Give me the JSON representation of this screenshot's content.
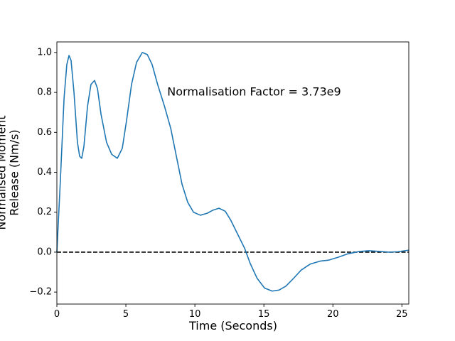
{
  "chart_data": {
    "type": "line",
    "xlabel": "Time (Seconds)",
    "ylabel": [
      "Normalised Moment",
      "Release (Nm/s)"
    ],
    "annotation": {
      "text": "Normalisation Factor = 3.73e9",
      "x": 8.0,
      "y": 0.8
    },
    "hline": {
      "y": 0,
      "color": "#000000",
      "style": "dashed"
    },
    "xlim": [
      0,
      25.5
    ],
    "ylim": [
      -0.26,
      1.053
    ],
    "xticks": [
      0,
      5,
      10,
      15,
      20,
      25
    ],
    "yticks": [
      {
        "value": -0.2,
        "label": "−0.2"
      },
      {
        "value": 0.0,
        "label": "0.0"
      },
      {
        "value": 0.2,
        "label": "0.2"
      },
      {
        "value": 0.4,
        "label": "0.4"
      },
      {
        "value": 0.6,
        "label": "0.6"
      },
      {
        "value": 0.8,
        "label": "0.8"
      },
      {
        "value": 1.0,
        "label": "1.0"
      }
    ],
    "grid": false,
    "series": [
      {
        "color": "#1f77b4",
        "x": [
          0,
          0.26,
          0.52,
          0.72,
          0.88,
          1.03,
          1.24,
          1.49,
          1.65,
          1.8,
          1.96,
          2.22,
          2.47,
          2.73,
          2.94,
          3.2,
          3.6,
          3.97,
          4.38,
          4.74,
          5.05,
          5.41,
          5.77,
          6.19,
          6.55,
          6.9,
          7.3,
          7.8,
          8.25,
          8.66,
          9.07,
          9.48,
          9.9,
          10.4,
          10.9,
          11.3,
          11.75,
          12.2,
          12.6,
          13.1,
          13.6,
          14.0,
          14.5,
          15.05,
          15.6,
          16.1,
          16.6,
          17.1,
          17.7,
          18.35,
          19.07,
          19.7,
          20.4,
          21.1,
          21.9,
          22.6,
          23.3,
          24.1,
          24.7,
          25.5
        ],
        "values": [
          0,
          0.37,
          0.77,
          0.94,
          0.985,
          0.96,
          0.8,
          0.55,
          0.48,
          0.47,
          0.53,
          0.73,
          0.84,
          0.86,
          0.82,
          0.69,
          0.55,
          0.49,
          0.47,
          0.52,
          0.66,
          0.84,
          0.95,
          1.0,
          0.99,
          0.94,
          0.84,
          0.73,
          0.62,
          0.48,
          0.34,
          0.25,
          0.2,
          0.185,
          0.195,
          0.21,
          0.22,
          0.205,
          0.16,
          0.09,
          0.02,
          -0.055,
          -0.13,
          -0.18,
          -0.195,
          -0.19,
          -0.17,
          -0.135,
          -0.09,
          -0.06,
          -0.045,
          -0.04,
          -0.025,
          -0.008,
          0.003,
          0.007,
          0.004,
          0.0,
          0.002,
          0.01
        ]
      }
    ]
  }
}
